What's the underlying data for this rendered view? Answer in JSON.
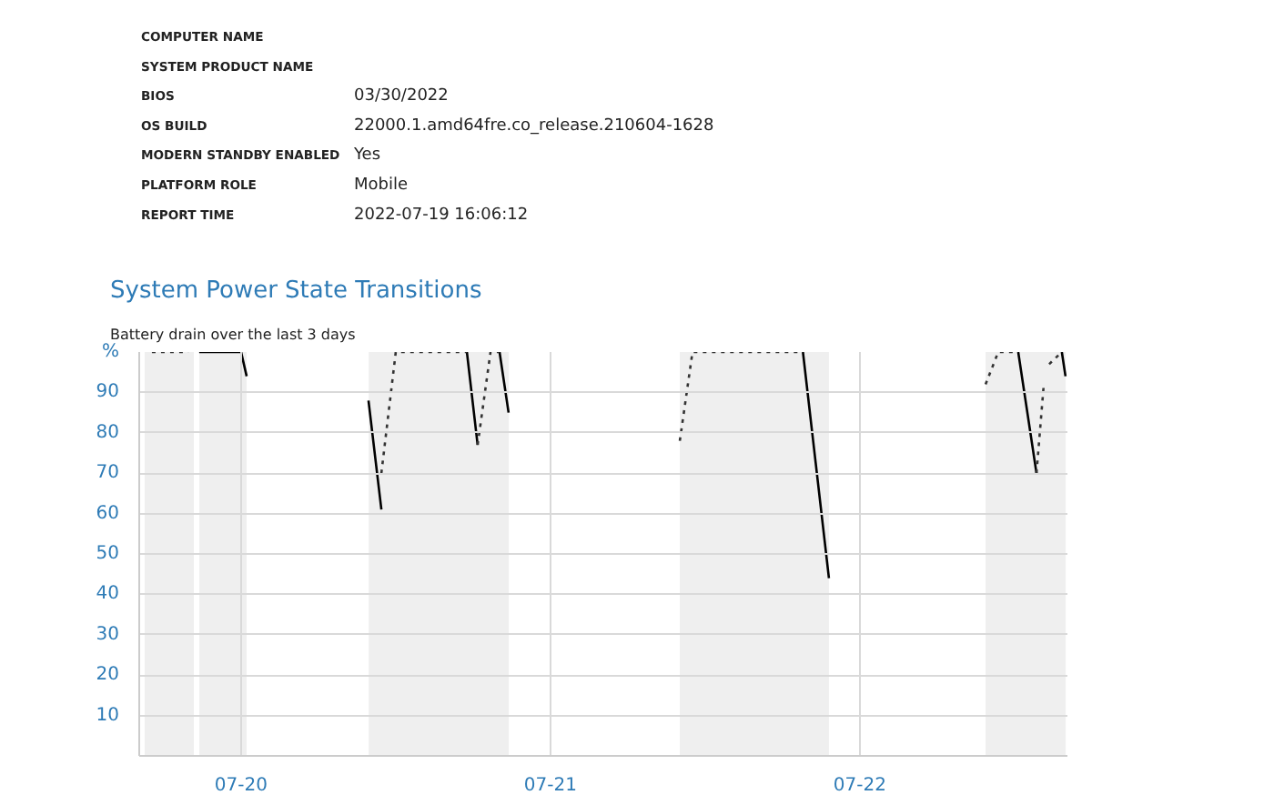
{
  "chart_data": {
    "type": "line",
    "title": "System Power State Transitions",
    "subtitle": "Battery drain over the last 3 days",
    "annotations": [
      "COMPUTER NAME",
      "SYSTEM PRODUCT NAME",
      "BIOS",
      "OS BUILD",
      "MODERN STANDBY ENABLED",
      "PLATFORM ROLE",
      "REPORT TIME",
      "03/30/2022",
      "22000.1.amd64fre.co_release.210604-1628",
      "Yes",
      "Mobile",
      "2022-07-19 16:06:12"
    ],
    "series": [
      {
        "color": "#000000",
        "line_style": "solid",
        "x": [
          "2022-07-19T20:45",
          "2022-07-20T00:00",
          "2022-07-20T00:26",
          "2022-07-20T05:00",
          "2022-07-20T09:53",
          "2022-07-20T10:53",
          "2022-07-20T14:00",
          "2022-07-20T17:31",
          "2022-07-20T18:21",
          "2022-07-20T19:10",
          "2022-07-20T20:03",
          "2022-07-20T20:45",
          "2022-07-21T12:00",
          "2022-07-21T19:35",
          "2022-07-21T21:36",
          "2022-07-22T05:00",
          "2022-07-22T12:17",
          "2022-07-22T13:42",
          "2022-07-22T14:40",
          "2022-07-22T15:40",
          "2022-07-22T15:57"
        ],
        "values": [
          100,
          100,
          94,
          null,
          88,
          61,
          null,
          100,
          77,
          null,
          100,
          85,
          null,
          100,
          44,
          null,
          100,
          70,
          null,
          100,
          94
        ]
      },
      {
        "color": "#333333",
        "line_style": "dotted",
        "x": [
          "2022-07-19T17:05",
          "2022-07-19T19:55",
          "2022-07-20T05:00",
          "2022-07-20T10:53",
          "2022-07-20T12:00",
          "2022-07-20T17:31",
          "2022-07-20T17:50",
          "2022-07-20T18:21",
          "2022-07-20T19:21",
          "2022-07-20T20:03",
          "2022-07-21T05:00",
          "2022-07-21T10:02",
          "2022-07-21T11:01",
          "2022-07-21T19:35",
          "2022-07-22T05:00",
          "2022-07-22T09:45",
          "2022-07-22T10:44",
          "2022-07-22T12:17",
          "2022-07-22T13:00",
          "2022-07-22T13:42",
          "2022-07-22T14:16",
          "2022-07-22T14:30",
          "2022-07-22T14:41",
          "2022-07-22T15:40"
        ],
        "values": [
          100,
          100,
          null,
          70,
          100,
          100,
          null,
          77,
          100,
          100,
          null,
          78,
          100,
          100,
          null,
          92,
          100,
          100,
          null,
          70,
          92,
          null,
          97,
          100
        ]
      }
    ],
    "bands": [
      {
        "axis": "x",
        "from": "2022-07-19T16:31",
        "to": "2022-07-19T20:20",
        "color": "#efefef"
      },
      {
        "axis": "x",
        "from": "2022-07-19T20:46",
        "to": "2022-07-20T00:26",
        "color": "#efefef"
      },
      {
        "axis": "x",
        "from": "2022-07-20T09:54",
        "to": "2022-07-20T20:46",
        "color": "#efefef"
      },
      {
        "axis": "x",
        "from": "2022-07-21T10:02",
        "to": "2022-07-21T21:36",
        "color": "#efefef"
      },
      {
        "axis": "x",
        "from": "2022-07-22T09:45",
        "to": "2022-07-22T15:58",
        "color": "#efefef"
      }
    ],
    "xlim": [
      "2022-07-19T16:06",
      "2022-07-22T16:06"
    ],
    "xticks": [
      {
        "value": "2022-07-20",
        "label": "07-20"
      },
      {
        "value": "2022-07-21",
        "label": "07-21"
      },
      {
        "value": "2022-07-22",
        "label": "07-22"
      }
    ],
    "ylim": [
      0,
      100
    ],
    "yticks": [
      {
        "value": 0,
        "label": null
      },
      10,
      20,
      30,
      40,
      50,
      60,
      70,
      80,
      90,
      {
        "value": 100,
        "label": "%"
      }
    ],
    "grid": true,
    "marker": "none"
  }
}
